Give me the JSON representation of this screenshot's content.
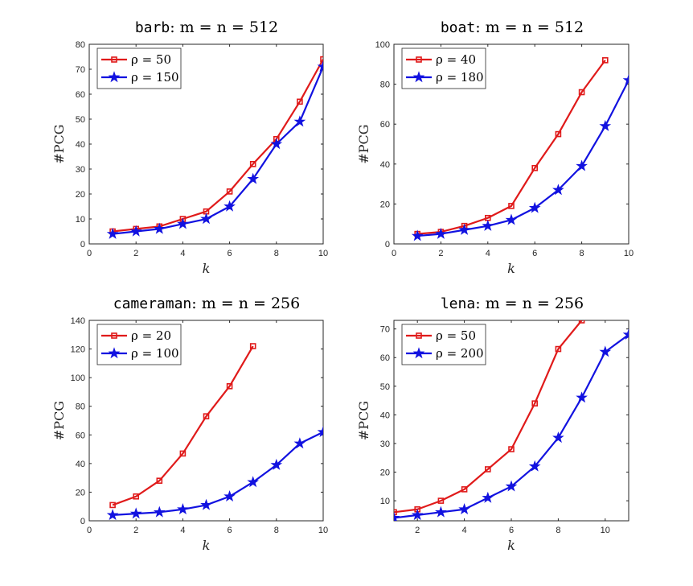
{
  "chart_data": [
    {
      "type": "line",
      "title_mono": "barb",
      "title_math": ": m = n = 512",
      "xlabel": "k",
      "ylabel": "#PCG",
      "xlim": [
        0,
        10
      ],
      "ylim": [
        0,
        80
      ],
      "xticks": [
        0,
        2,
        4,
        6,
        8,
        10
      ],
      "yticks": [
        0,
        10,
        20,
        30,
        40,
        50,
        60,
        70,
        80
      ],
      "series": [
        {
          "name": "ρ = 50",
          "color": "#e01a1a",
          "marker": "square",
          "x": [
            1,
            2,
            3,
            4,
            5,
            6,
            7,
            8,
            9,
            10
          ],
          "values": [
            5,
            6,
            7,
            10,
            13,
            21,
            32,
            42,
            57,
            74
          ]
        },
        {
          "name": "ρ = 150",
          "color": "#1212e0",
          "marker": "star",
          "x": [
            1,
            2,
            3,
            4,
            5,
            6,
            7,
            8,
            9,
            10
          ],
          "values": [
            4,
            5,
            6,
            8,
            10,
            15,
            26,
            40,
            49,
            71
          ]
        }
      ]
    },
    {
      "type": "line",
      "title_mono": "boat",
      "title_math": ": m = n = 512",
      "xlabel": "k",
      "ylabel": "#PCG",
      "xlim": [
        0,
        10
      ],
      "ylim": [
        0,
        100
      ],
      "xticks": [
        0,
        2,
        4,
        6,
        8,
        10
      ],
      "yticks": [
        0,
        20,
        40,
        60,
        80,
        100
      ],
      "series": [
        {
          "name": "ρ = 40",
          "color": "#e01a1a",
          "marker": "square",
          "x": [
            1,
            2,
            3,
            4,
            5,
            6,
            7,
            8,
            9
          ],
          "values": [
            5,
            6,
            9,
            13,
            19,
            38,
            55,
            76,
            92
          ]
        },
        {
          "name": "ρ = 180",
          "color": "#1212e0",
          "marker": "star",
          "x": [
            1,
            2,
            3,
            4,
            5,
            6,
            7,
            8,
            9,
            10
          ],
          "values": [
            4,
            5,
            7,
            9,
            12,
            18,
            27,
            39,
            59,
            82
          ]
        }
      ]
    },
    {
      "type": "line",
      "title_mono": "cameraman",
      "title_math": ": m = n = 256",
      "xlabel": "k",
      "ylabel": "#PCG",
      "xlim": [
        0,
        10
      ],
      "ylim": [
        0,
        140
      ],
      "xticks": [
        0,
        2,
        4,
        6,
        8,
        10
      ],
      "yticks": [
        0,
        20,
        40,
        60,
        80,
        100,
        120,
        140
      ],
      "series": [
        {
          "name": "ρ = 20",
          "color": "#e01a1a",
          "marker": "square",
          "x": [
            1,
            2,
            3,
            4,
            5,
            6,
            7
          ],
          "values": [
            11,
            17,
            28,
            47,
            73,
            94,
            122
          ]
        },
        {
          "name": "ρ = 100",
          "color": "#1212e0",
          "marker": "star",
          "x": [
            1,
            2,
            3,
            4,
            5,
            6,
            7,
            8,
            9,
            10
          ],
          "values": [
            4,
            5,
            6,
            8,
            11,
            17,
            27,
            39,
            54,
            62
          ]
        }
      ]
    },
    {
      "type": "line",
      "title_mono": "lena",
      "title_math": ": m = n = 256",
      "xlabel": "k",
      "ylabel": "#PCG",
      "xlim": [
        1,
        11
      ],
      "ylim": [
        3,
        73
      ],
      "xticks": [
        2,
        4,
        6,
        8,
        10
      ],
      "yticks": [
        10,
        20,
        30,
        40,
        50,
        60,
        70
      ],
      "series": [
        {
          "name": "ρ = 50",
          "color": "#e01a1a",
          "marker": "square",
          "x": [
            1,
            2,
            3,
            4,
            5,
            6,
            7,
            8,
            9
          ],
          "values": [
            6,
            7,
            10,
            14,
            21,
            28,
            44,
            63,
            73
          ]
        },
        {
          "name": "ρ = 200",
          "color": "#1212e0",
          "marker": "star",
          "x": [
            1,
            2,
            3,
            4,
            5,
            6,
            7,
            8,
            9,
            10,
            11
          ],
          "values": [
            4,
            5,
            6,
            7,
            11,
            15,
            22,
            32,
            46,
            62,
            68
          ]
        }
      ]
    }
  ]
}
